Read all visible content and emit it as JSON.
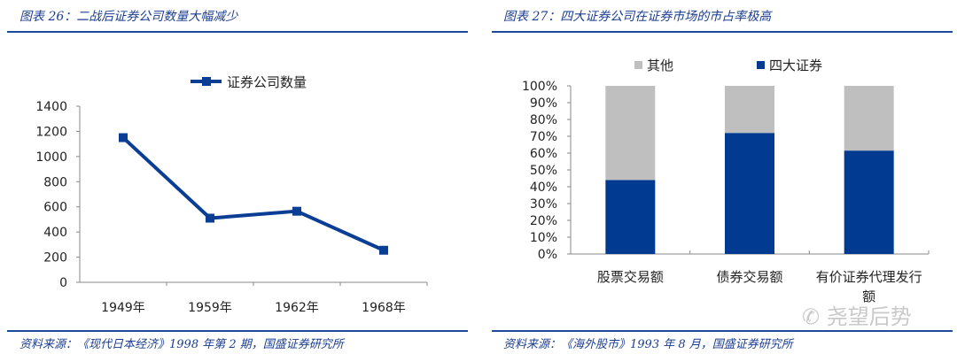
{
  "left_title": "图表 26：二战后证券公司数量大幅减少",
  "right_title": "图表 27：四大证券公司在证券市场的市占率极高",
  "left_source": "资料来源：《现代日本经济》1998 年第 2 期，国盛证券研究所",
  "right_source": "资料来源：《海外股市》1993 年 8 月，国盛证券研究所",
  "watermark": "尧望后势",
  "chart_data": [
    {
      "type": "line",
      "categories": [
        "1949年",
        "1959年",
        "1962年",
        "1968年"
      ],
      "series": [
        {
          "name": "证券公司数量",
          "values": [
            1150,
            510,
            565,
            255
          ],
          "color": "#0a3d94"
        }
      ],
      "ylim": [
        0,
        1400
      ],
      "yticks": [
        "0",
        "200",
        "400",
        "600",
        "800",
        "1000",
        "1200",
        "1400"
      ],
      "legend": "top",
      "grid": false
    },
    {
      "type": "bar",
      "stacked": true,
      "categories": [
        "股票交易额",
        "债券交易额",
        "有价证券代理发行额"
      ],
      "series": [
        {
          "name": "四大证券",
          "values": [
            44,
            72,
            61.5
          ],
          "color": "#003a91"
        },
        {
          "name": "其他",
          "values": [
            56,
            28,
            38.5
          ],
          "color": "#bfbfbf"
        }
      ],
      "ylim": [
        0,
        100
      ],
      "yticks": [
        "0%",
        "10%",
        "20%",
        "30%",
        "40%",
        "50%",
        "60%",
        "70%",
        "80%",
        "90%",
        "100%"
      ],
      "legend": "top",
      "grid": false
    }
  ]
}
